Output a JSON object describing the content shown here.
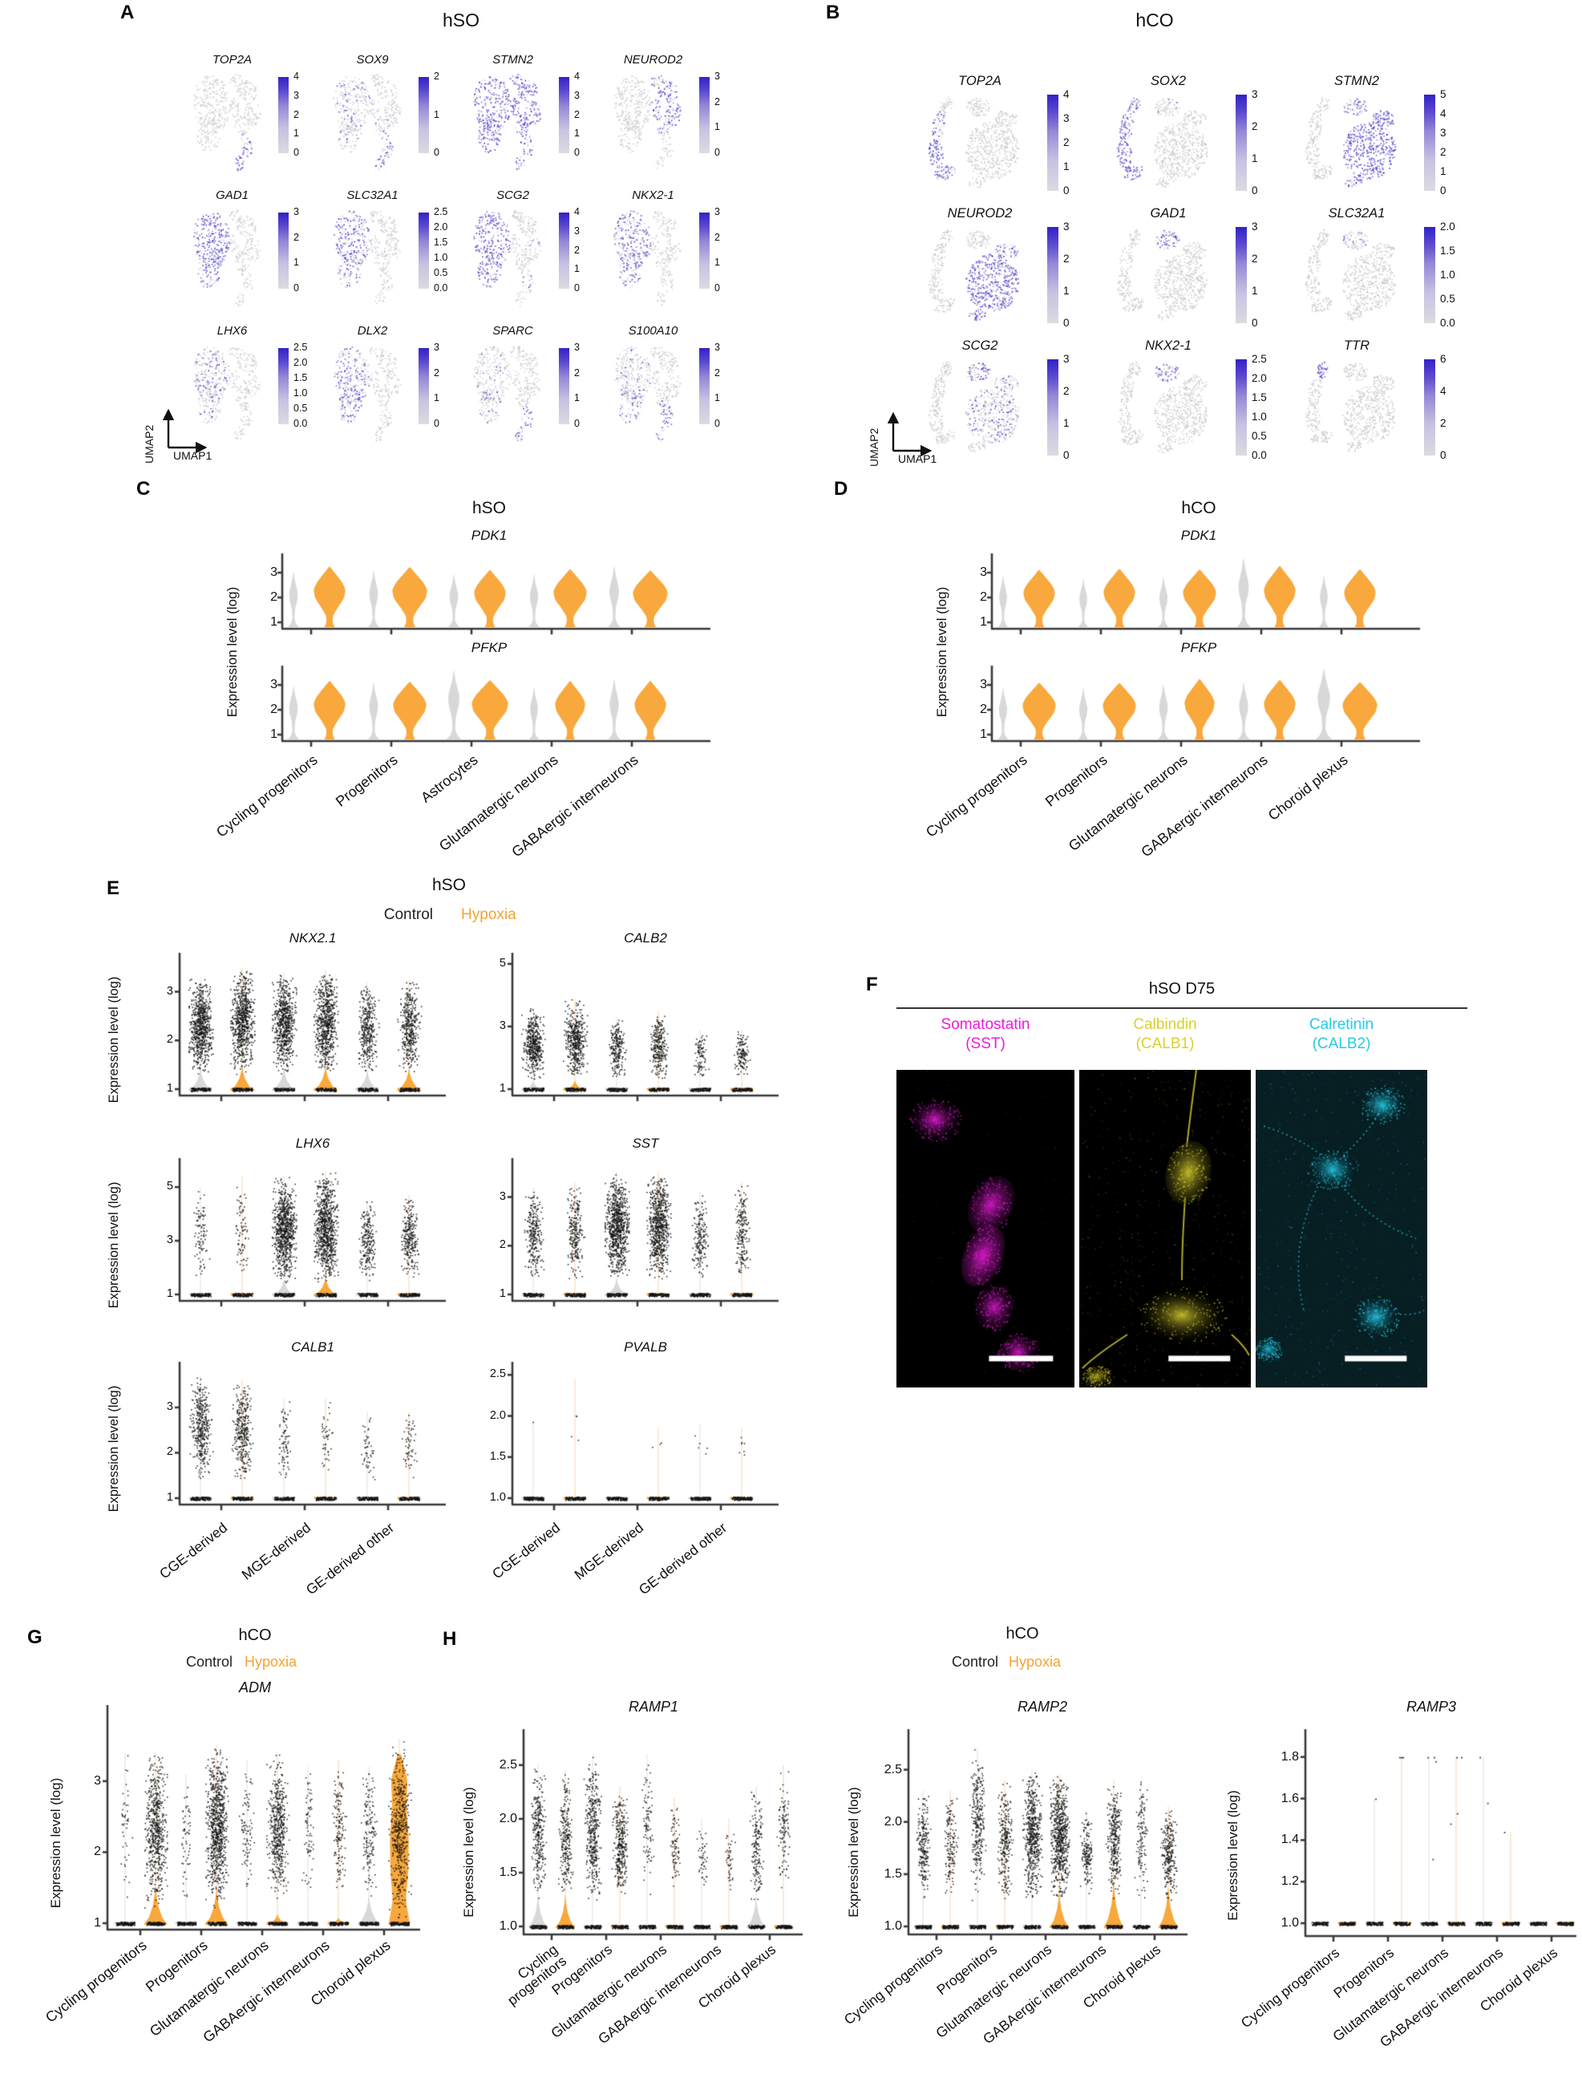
{
  "colors": {
    "hypoxia_orange": "#F7A32E",
    "control_gray": "#D6D6D6",
    "violin_orange": "#F8A83C",
    "violin_gray": "#d8d8d8",
    "feature_high": "#3122c7",
    "feature_low": "#dcdbe0",
    "dot_black": "#141414",
    "axis": "#333333",
    "magenta": "#EA1CDB",
    "yellow": "#D9D02E",
    "cyan": "#25CBE8"
  },
  "panelA": {
    "label": "A",
    "title": "hSO",
    "axis": {
      "x": "UMAP1",
      "y": "UMAP2"
    },
    "plots": [
      {
        "gene": "TOP2A",
        "cbar": [
          "0",
          "1",
          "2",
          "3",
          "4"
        ],
        "hl": {
          "TL": 0.5,
          "TP": 0.95
        }
      },
      {
        "gene": "SOX9",
        "cbar": [
          "0",
          "1",
          "2"
        ],
        "hl": {
          "L1": 0.12,
          "L2": 0.15,
          "TL": 0.55,
          "TP": 0.6,
          "R3": 0.1
        }
      },
      {
        "gene": "STMN2",
        "cbar": [
          "0",
          "1",
          "2",
          "3",
          "4"
        ],
        "hl": {
          "L1": 0.85,
          "L2": 0.8,
          "T1": 0.7,
          "R1": 0.85,
          "R2": 0.85,
          "R3": 0.8,
          "R4": 0.8,
          "TL": 0.6,
          "TP": 0.5
        }
      },
      {
        "gene": "NEUROD2",
        "cbar": [
          "0",
          "1",
          "2",
          "3"
        ],
        "hl": {
          "T1": 0.5,
          "R1": 0.8,
          "R2": 0.7,
          "R3": 0.4,
          "R4": 0.4
        }
      },
      {
        "gene": "GAD1",
        "cbar": [
          "0",
          "1",
          "2",
          "3"
        ],
        "hl": {
          "L1": 0.8,
          "L2": 0.6
        }
      },
      {
        "gene": "SLC32A1",
        "cbar": [
          "0.0",
          "0.5",
          "1.0",
          "1.5",
          "2.0",
          "2.5"
        ],
        "hl": {
          "L1": 0.55,
          "L2": 0.45
        }
      },
      {
        "gene": "SCG2",
        "cbar": [
          "0",
          "1",
          "2",
          "3",
          "4"
        ],
        "hl": {
          "L1": 0.85,
          "L2": 0.7,
          "R2": 0.15,
          "TL": 0.2
        }
      },
      {
        "gene": "NKX2-1",
        "cbar": [
          "0",
          "1",
          "2",
          "3"
        ],
        "hl": {
          "L1": 0.6,
          "L2": 0.5
        }
      },
      {
        "gene": "LHX6",
        "cbar": [
          "0.0",
          "0.5",
          "1.0",
          "1.5",
          "2.0",
          "2.5"
        ],
        "hl": {
          "L1": 0.35,
          "L2": 0.15
        }
      },
      {
        "gene": "DLX2",
        "cbar": [
          "0",
          "1",
          "2",
          "3"
        ],
        "hl": {
          "L1": 0.5,
          "L2": 0.4
        }
      },
      {
        "gene": "SPARC",
        "cbar": [
          "0",
          "1",
          "2",
          "3"
        ],
        "hl": {
          "L2": 0.25,
          "TL": 0.6,
          "TP": 0.5,
          "L1": 0.08
        }
      },
      {
        "gene": "S100A10",
        "cbar": [
          "0",
          "1",
          "2",
          "3"
        ],
        "hl": {
          "L2": 0.35,
          "TL": 0.55,
          "TP": 0.4,
          "L1": 0.1,
          "R3": 0.1
        }
      }
    ]
  },
  "panelB": {
    "label": "B",
    "title": "hCO",
    "axis": {
      "x": "UMAP1",
      "y": "UMAP2"
    },
    "plots": [
      {
        "gene": "TOP2A",
        "cbar": [
          "0",
          "1",
          "2",
          "3",
          "4"
        ],
        "hl": {
          "S2": 0.5,
          "S3": 0.85,
          "S4": 0.7
        }
      },
      {
        "gene": "SOX2",
        "cbar": [
          "0",
          "1",
          "2",
          "3"
        ],
        "hl": {
          "S1": 0.6,
          "S2": 0.8,
          "S3": 0.85,
          "S4": 0.8,
          "K": 0.15
        }
      },
      {
        "gene": "STMN2",
        "cbar": [
          "0",
          "1",
          "2",
          "3",
          "4",
          "5"
        ],
        "hl": {
          "K": 0.5,
          "R1": 0.9,
          "R2": 0.8,
          "B": 0.6
        }
      },
      {
        "gene": "NEUROD2",
        "cbar": [
          "0",
          "1",
          "2",
          "3"
        ],
        "hl": {
          "R1": 0.85,
          "B": 0.6,
          "R2": 0.3
        }
      },
      {
        "gene": "GAD1",
        "cbar": [
          "0",
          "1",
          "2",
          "3"
        ],
        "hl": {
          "K": 0.55
        }
      },
      {
        "gene": "SLC32A1",
        "cbar": [
          "0.0",
          "0.5",
          "1.0",
          "1.5",
          "2.0"
        ],
        "hl": {
          "K": 0.3
        }
      },
      {
        "gene": "SCG2",
        "cbar": [
          "0",
          "1",
          "2",
          "3"
        ],
        "hl": {
          "K": 0.5,
          "R1": 0.3,
          "R2": 0.35
        }
      },
      {
        "gene": "NKX2-1",
        "cbar": [
          "0.0",
          "0.5",
          "1.0",
          "1.5",
          "2.0",
          "2.5"
        ],
        "hl": {
          "K": 0.45
        }
      },
      {
        "gene": "TTR",
        "cbar": [
          "0",
          "2",
          "4",
          "6"
        ],
        "hl": {
          "S1": 0.9
        }
      }
    ]
  },
  "panelC": {
    "label": "C",
    "title": "hSO",
    "ylabel": "Expression level (log)",
    "yticks": [
      "1",
      "2",
      "3"
    ],
    "genes": [
      "PDK1",
      "PFKP"
    ],
    "categories": [
      "Cycling progenitors",
      "Progenitors",
      "Astrocytes",
      "Glutamatergic neurons",
      "GABAergic interneurons"
    ],
    "gray_scale": [
      [
        1,
        1,
        1,
        0.95,
        1.1
      ],
      [
        1,
        1,
        1.3,
        0.9,
        1.05
      ]
    ],
    "orange_scale": [
      [
        1,
        1.1,
        1,
        1.05,
        1.1
      ],
      [
        1,
        1.05,
        1.15,
        0.95,
        1
      ]
    ]
  },
  "panelD": {
    "label": "D",
    "title": "hCO",
    "ylabel": "Expression level (log)",
    "yticks": [
      "1",
      "2",
      "3"
    ],
    "genes": [
      "PDK1",
      "PFKP"
    ],
    "categories": [
      "Cycling progenitors",
      "Progenitors",
      "Glutamatergic neurons",
      "GABAergic interneurons",
      "Choroid plexus"
    ],
    "gray_scale": [
      [
        0.9,
        0.9,
        0.95,
        1.2,
        0.9
      ],
      [
        0.95,
        0.95,
        1,
        1.05,
        1.45
      ]
    ],
    "orange_scale": [
      [
        1,
        1,
        1.05,
        1,
        1
      ],
      [
        1.05,
        1.05,
        0.95,
        1,
        1.1
      ]
    ]
  },
  "panelE": {
    "label": "E",
    "title": "hSO",
    "legend": [
      "Control",
      "Hypoxia"
    ],
    "ylabel": "Expression level (log)",
    "categories": [
      "CGE-derived",
      "MGE-derived",
      "GE-derived other"
    ],
    "plots": [
      {
        "gene": "NKX2.1",
        "yticks": [
          "1",
          "2",
          "3"
        ],
        "vmax": 3.7,
        "cols": [
          [
            700,
            1.3,
            3.3,
            1,
            0.45
          ],
          [
            700,
            1.3,
            3.5,
            2,
            0.5
          ],
          [
            650,
            1.3,
            3.4,
            1,
            0.45
          ],
          [
            650,
            1.3,
            3.45,
            2,
            0.5
          ],
          [
            350,
            1.3,
            3.2,
            1,
            0.4
          ],
          [
            400,
            1.3,
            3.25,
            2,
            0.45
          ]
        ]
      },
      {
        "gene": "CALB2",
        "yticks": [
          "1",
          "3",
          "5"
        ],
        "vmax": 5.2,
        "cols": [
          [
            450,
            1.3,
            3.6,
            1,
            0.3
          ],
          [
            450,
            1.3,
            3.9,
            2,
            0.32
          ],
          [
            220,
            1.3,
            3.3,
            0,
            0
          ],
          [
            260,
            1.3,
            3.5,
            0,
            0
          ],
          [
            90,
            1.4,
            2.9,
            0,
            0
          ],
          [
            130,
            1.4,
            2.9,
            0,
            0
          ]
        ]
      },
      {
        "gene": "LHX6",
        "yticks": [
          "1",
          "3",
          "5"
        ],
        "vmax": 5.9,
        "cols": [
          [
            90,
            1.5,
            5.0,
            0,
            0
          ],
          [
            80,
            1.5,
            5.4,
            0,
            0
          ],
          [
            800,
            1.4,
            5.4,
            1,
            0.6
          ],
          [
            800,
            1.4,
            5.6,
            2,
            0.7
          ],
          [
            220,
            1.5,
            4.5,
            0,
            0
          ],
          [
            260,
            1.5,
            4.7,
            0,
            0
          ]
        ]
      },
      {
        "gene": "SST",
        "yticks": [
          "1",
          "2",
          "3"
        ],
        "vmax": 3.7,
        "cols": [
          [
            260,
            1.3,
            3.2,
            0,
            0
          ],
          [
            240,
            1.3,
            3.3,
            0,
            0
          ],
          [
            800,
            1.3,
            3.5,
            1,
            0.35
          ],
          [
            700,
            1.3,
            3.5,
            0,
            0
          ],
          [
            180,
            1.3,
            3.1,
            0,
            0
          ],
          [
            200,
            1.3,
            3.3,
            0,
            0
          ]
        ]
      },
      {
        "gene": "CALB1",
        "yticks": [
          "1",
          "2",
          "3"
        ],
        "vmax": 3.9,
        "cols": [
          [
            380,
            1.4,
            3.7,
            0,
            0
          ],
          [
            330,
            1.4,
            3.6,
            0,
            0
          ],
          [
            80,
            1.4,
            3.2,
            0,
            0
          ],
          [
            45,
            1.5,
            3.2,
            0,
            0
          ],
          [
            50,
            1.4,
            2.9,
            0,
            0
          ],
          [
            60,
            1.4,
            2.9,
            0,
            0
          ]
        ]
      },
      {
        "gene": "PVALB",
        "yticks": [
          "1.0",
          "1.5",
          "2.0",
          "2.5"
        ],
        "vmax": 2.6,
        "cols": [
          [
            1,
            1.9,
            1.95,
            0,
            0
          ],
          [
            4,
            1.55,
            2.45,
            0,
            0
          ],
          [
            0,
            1.2,
            1.3,
            0,
            0
          ],
          [
            3,
            1.5,
            1.85,
            0,
            0
          ],
          [
            5,
            1.4,
            1.9,
            0,
            0
          ],
          [
            7,
            1.4,
            1.85,
            0,
            0
          ]
        ]
      }
    ]
  },
  "panelF": {
    "label": "F",
    "title": "hSO D75",
    "channels": [
      {
        "name": "Somatostatin",
        "abbr": "(SST)",
        "color": "#EA1CDB"
      },
      {
        "name": "Calbindin",
        "abbr": "(CALB1)",
        "color": "#D9D02E"
      },
      {
        "name": "Calretinin",
        "abbr": "(CALB2)",
        "color": "#25CBE8"
      }
    ]
  },
  "panelG": {
    "label": "G",
    "title": "hCO",
    "legend": [
      "Control",
      "Hypoxia"
    ],
    "gene": "ADM",
    "ylabel": "Expression level (log)",
    "yticks": [
      "1",
      "2",
      "3"
    ],
    "vmax": 3.8,
    "categories": [
      "Cycling progenitors",
      "Progenitors",
      "Glutamatergic neurons",
      "GABAergic interneurons",
      "Choroid plexus"
    ],
    "cols": [
      [
        45,
        1.3,
        3.4,
        0,
        0
      ],
      [
        600,
        1.2,
        3.4,
        2,
        0.55
      ],
      [
        60,
        1.3,
        3.1,
        0,
        0
      ],
      [
        800,
        1.2,
        3.5,
        2,
        0.5
      ],
      [
        90,
        1.4,
        3.3,
        0,
        0
      ],
      [
        500,
        1.3,
        3.4,
        2,
        0.15
      ],
      [
        70,
        1.4,
        3.2,
        0,
        0
      ],
      [
        150,
        1.4,
        3.3,
        2,
        0.1
      ],
      [
        150,
        1.3,
        3.2,
        1,
        0.4
      ],
      [
        500,
        1.05,
        3.6,
        2,
        2.4
      ]
    ]
  },
  "panelH": {
    "label": "H",
    "title": "hCO",
    "legend": [
      "Control",
      "Hypoxia"
    ],
    "ylabel": "Expression level (log)",
    "categories": [
      "Cycling progenitors",
      "Progenitors",
      "Glutamatergic neurons",
      "GABAergic interneurons",
      "Choroid plexus"
    ],
    "plots": [
      {
        "gene": "RAMP1",
        "yticks": [
          "1.0",
          "1.5",
          "2.0",
          "2.5"
        ],
        "vmax": 2.7,
        "firstCatTwoLine": true,
        "cols": [
          [
            280,
            1.25,
            2.5,
            1,
            0.3
          ],
          [
            240,
            1.25,
            2.45,
            2,
            0.3
          ],
          [
            380,
            1.2,
            2.6,
            0,
            0
          ],
          [
            320,
            1.25,
            2.3,
            0,
            0
          ],
          [
            90,
            1.3,
            2.6,
            0,
            0
          ],
          [
            80,
            1.3,
            2.2,
            0,
            0
          ],
          [
            45,
            1.3,
            2.0,
            0,
            0
          ],
          [
            45,
            1.3,
            2.0,
            0,
            0
          ],
          [
            160,
            1.2,
            2.3,
            1,
            0.28
          ],
          [
            110,
            1.3,
            2.5,
            0,
            0
          ]
        ]
      },
      {
        "gene": "RAMP2",
        "yticks": [
          "1.0",
          "1.5",
          "2.0",
          "2.5"
        ],
        "vmax": 2.75,
        "firstCatTwoLine": false,
        "cols": [
          [
            220,
            1.25,
            2.3,
            0,
            0
          ],
          [
            150,
            1.3,
            2.3,
            0,
            0
          ],
          [
            280,
            1.25,
            2.7,
            0,
            0
          ],
          [
            260,
            1.25,
            2.4,
            0,
            0
          ],
          [
            550,
            1.25,
            2.5,
            0,
            0
          ],
          [
            650,
            1.25,
            2.45,
            2,
            0.35
          ],
          [
            160,
            1.3,
            2.1,
            0,
            0
          ],
          [
            300,
            1.25,
            2.4,
            2,
            0.45
          ],
          [
            120,
            1.25,
            2.4,
            0,
            0
          ],
          [
            260,
            1.25,
            2.15,
            2,
            0.4
          ]
        ]
      },
      {
        "gene": "RAMP3",
        "yticks": [
          "1.0",
          "1.2",
          "1.4",
          "1.6",
          "1.8"
        ],
        "vmax": 1.88,
        "firstCatTwoLine": false,
        "cols": [
          [
            0,
            0,
            0,
            0,
            0
          ],
          [
            0,
            0,
            0,
            0,
            0
          ],
          [
            0,
            0,
            0,
            0,
            0,
            [
              1.6
            ]
          ],
          [
            0,
            0,
            0,
            0,
            0,
            [
              1.8,
              1.8,
              1.8
            ]
          ],
          [
            0,
            0,
            0,
            0,
            0,
            [
              1.78,
              1.31,
              1.8,
              1.8
            ]
          ],
          [
            0,
            0,
            0,
            0,
            0,
            [
              1.53,
              1.48,
              1.8,
              1.8
            ]
          ],
          [
            0,
            0,
            0,
            0,
            0,
            [
              1.58,
              1.8
            ]
          ],
          [
            0,
            0,
            0,
            0,
            0,
            [
              1.44
            ]
          ],
          [
            0,
            0,
            0,
            0,
            0
          ],
          [
            0,
            0,
            0,
            0,
            0
          ]
        ]
      }
    ]
  }
}
